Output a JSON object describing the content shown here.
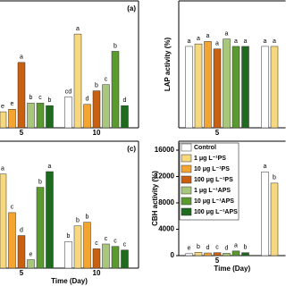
{
  "chart_data": [
    {
      "type": "bar",
      "panel_label": "(a)",
      "categories": [
        "5",
        "10"
      ],
      "ylim": [
        0,
        100
      ],
      "series": [
        {
          "color": "#ffffff",
          "values": [
            null,
            25
          ],
          "letters": [
            null,
            "cd"
          ]
        },
        {
          "color": "#f6d87e",
          "values": [
            13,
            76
          ],
          "letters": [
            "e",
            "a"
          ]
        },
        {
          "color": "#f4a531",
          "values": [
            15,
            19
          ],
          "letters": [
            "e",
            "d"
          ]
        },
        {
          "color": "#c8600f",
          "values": [
            53,
            30
          ],
          "letters": [
            "a",
            "b"
          ]
        },
        {
          "color": "#a9c77b",
          "values": [
            20,
            35
          ],
          "letters": [
            "b",
            "c"
          ]
        },
        {
          "color": "#5a9a2e",
          "values": [
            20,
            62
          ],
          "letters": [
            "c",
            "b"
          ]
        },
        {
          "color": "#1e6a1e",
          "values": [
            18,
            18
          ],
          "letters": [
            "b",
            "d"
          ]
        }
      ]
    },
    {
      "type": "bar",
      "y_label": "LAP activity (%)",
      "categories": [
        "5",
        null
      ],
      "ylim": [
        0,
        100
      ],
      "series": [
        {
          "color": "#ffffff",
          "values": [
            66,
            66
          ],
          "letters": [
            "a",
            "a"
          ]
        },
        {
          "color": "#f6d87e",
          "values": [
            68,
            66
          ],
          "letters": [
            "a",
            "a"
          ]
        },
        {
          "color": "#f4a531",
          "values": [
            70,
            null
          ],
          "letters": [
            "a",
            null
          ]
        },
        {
          "color": "#c8600f",
          "values": [
            64,
            null
          ],
          "letters": [
            "a",
            null
          ]
        },
        {
          "color": "#a9c77b",
          "values": [
            72,
            null
          ],
          "letters": [
            "a",
            null
          ]
        },
        {
          "color": "#5a9a2e",
          "values": [
            66,
            null
          ],
          "letters": [
            "a",
            null
          ]
        },
        {
          "color": "#1e6a1e",
          "values": [
            66,
            null
          ],
          "letters": [
            "a",
            null
          ]
        }
      ]
    },
    {
      "type": "bar",
      "panel_label": "(c)",
      "x_label": "Time (Day)",
      "categories": [
        "5",
        "10"
      ],
      "ylim": [
        0,
        100
      ],
      "series": [
        {
          "color": "#ffffff",
          "values": [
            null,
            22
          ],
          "letters": [
            null,
            "b"
          ]
        },
        {
          "color": "#f6d87e",
          "values": [
            78,
            35
          ],
          "letters": [
            "a",
            "b"
          ]
        },
        {
          "color": "#f4a531",
          "values": [
            46,
            38
          ],
          "letters": [
            "c",
            "b"
          ]
        },
        {
          "color": "#c8600f",
          "values": [
            27,
            16
          ],
          "letters": [
            "d",
            "c"
          ]
        },
        {
          "color": "#a9c77b",
          "values": [
            7,
            20
          ],
          "letters": [
            "e",
            "c"
          ]
        },
        {
          "color": "#5a9a2e",
          "values": [
            67,
            18
          ],
          "letters": [
            "b",
            "c"
          ]
        },
        {
          "color": "#1e6a1e",
          "values": [
            80,
            15
          ],
          "letters": [
            "a",
            "c"
          ]
        }
      ]
    },
    {
      "type": "bar",
      "y_label": "CBH activity (%)",
      "x_label": "Time (Day)",
      "categories": [
        "5",
        null
      ],
      "ylim": [
        0,
        16000
      ],
      "yticks": [
        0,
        4000,
        8000,
        12000,
        16000
      ],
      "legend": "upper left",
      "series": [
        {
          "name": "Control",
          "color": "#ffffff",
          "values": [
            300,
            12700
          ],
          "letters": [
            "e",
            "a"
          ]
        },
        {
          "name": "1 μg L⁻¹PS",
          "color": "#f6d87e",
          "values": [
            500,
            11000
          ],
          "letters": [
            "b",
            "b"
          ]
        },
        {
          "name": "10 μg L⁻¹PS",
          "color": "#f4a531",
          "values": [
            400,
            null
          ],
          "letters": [
            "d",
            null
          ]
        },
        {
          "name": "100 μg L⁻¹PS",
          "color": "#c8600f",
          "values": [
            450,
            null
          ],
          "letters": [
            "c",
            null
          ]
        },
        {
          "name": "1 μg L⁻¹APS",
          "color": "#a9c77b",
          "values": [
            350,
            null
          ],
          "letters": [
            "d",
            null
          ]
        },
        {
          "name": "10 μg L⁻¹APS",
          "color": "#5a9a2e",
          "values": [
            700,
            null
          ],
          "letters": [
            "a",
            null
          ]
        },
        {
          "name": "100 μg L⁻¹APS",
          "color": "#1e6a1e",
          "values": [
            450,
            null
          ],
          "letters": [
            "b",
            null
          ]
        }
      ]
    }
  ]
}
